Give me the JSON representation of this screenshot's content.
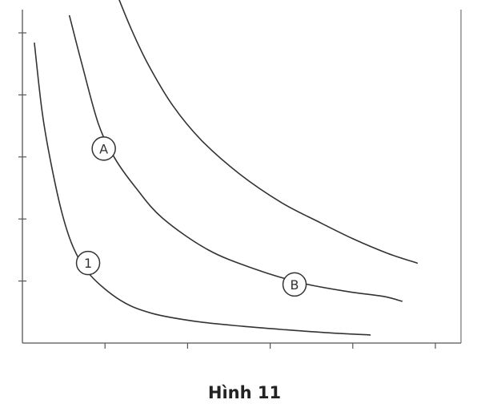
{
  "caption": "Hình 11",
  "chart_data": {
    "type": "line",
    "title": "",
    "xlabel": "",
    "ylabel": "",
    "xlim": [
      0,
      10
    ],
    "ylim": [
      0,
      10
    ],
    "grid": false,
    "x_ticks": [
      1,
      2,
      3,
      4,
      5
    ],
    "y_ticks": [
      1,
      2,
      3,
      4,
      5
    ],
    "series": [
      {
        "points": [
          [
            0.29,
            9.67
          ],
          [
            0.48,
            7.43
          ],
          [
            0.69,
            5.81
          ],
          [
            0.97,
            4.13
          ],
          [
            1.25,
            3.03
          ],
          [
            1.65,
            2.18
          ],
          [
            2.37,
            1.38
          ],
          [
            3.13,
            0.96
          ],
          [
            4.19,
            0.7
          ],
          [
            5.34,
            0.54
          ],
          [
            6.27,
            0.44
          ],
          [
            7.29,
            0.34
          ],
          [
            8.42,
            0.26
          ]
        ],
        "labels": [
          {
            "text": "1",
            "x": 1.59,
            "y": 2.58
          }
        ],
        "color": "#333333"
      },
      {
        "points": [
          [
            1.14,
            10.55
          ],
          [
            1.44,
            9.0
          ],
          [
            1.84,
            7.07
          ],
          [
            2.24,
            5.95
          ],
          [
            2.75,
            5.0
          ],
          [
            3.39,
            4.03
          ],
          [
            4.49,
            3.01
          ],
          [
            5.62,
            2.39
          ],
          [
            6.78,
            1.93
          ],
          [
            7.88,
            1.66
          ],
          [
            8.72,
            1.51
          ],
          [
            9.19,
            1.35
          ]
        ],
        "labels": [
          {
            "text": "A",
            "x": 1.97,
            "y": 6.27
          },
          {
            "text": "B",
            "x": 6.59,
            "y": 1.89
          }
        ],
        "color": "#333333"
      },
      {
        "points": [
          [
            2.29,
            11.24
          ],
          [
            2.63,
            10.14
          ],
          [
            3.05,
            8.97
          ],
          [
            3.64,
            7.66
          ],
          [
            4.34,
            6.53
          ],
          [
            5.26,
            5.45
          ],
          [
            6.27,
            4.53
          ],
          [
            7.14,
            3.93
          ],
          [
            8.01,
            3.36
          ],
          [
            8.85,
            2.89
          ],
          [
            9.56,
            2.58
          ]
        ],
        "labels": [],
        "color": "#333333"
      }
    ]
  }
}
